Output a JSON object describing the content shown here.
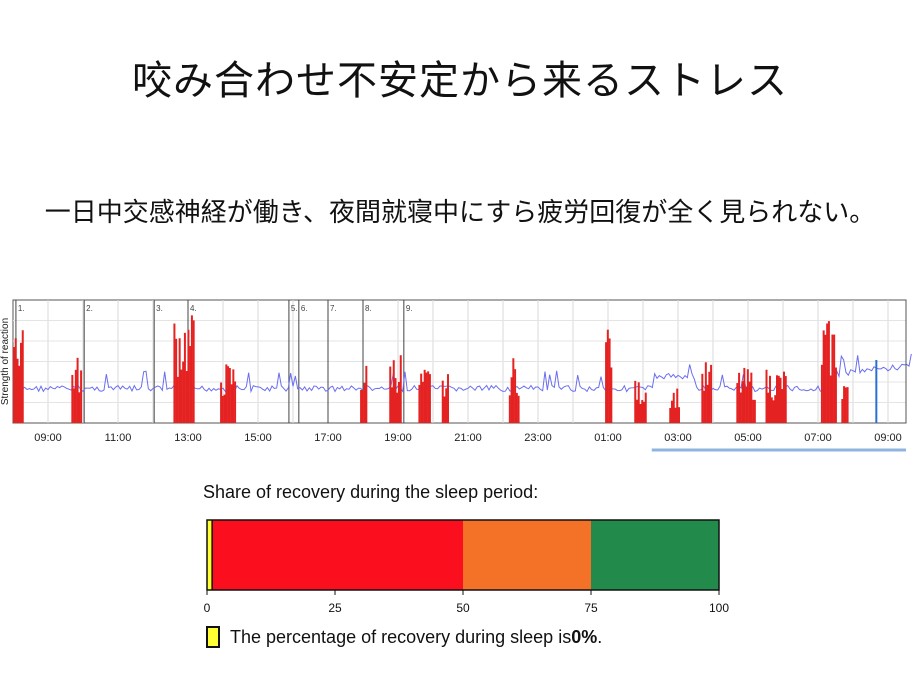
{
  "slide": {
    "title": "咬み合わせ不安定から来るストレス",
    "subtitle": "一日中交感神経が働き、夜間就寝中にすら疲労回復が全く見られない。"
  },
  "chart_data": [
    {
      "type": "line",
      "ylabel": "Strength of reaction",
      "x_tick_labels": [
        "09:00",
        "11:00",
        "13:00",
        "15:00",
        "17:00",
        "19:00",
        "21:00",
        "23:00",
        "01:00",
        "03:00",
        "05:00",
        "07:00",
        "09:00"
      ],
      "event_markers": [
        "1.",
        "2.",
        "3.",
        "4.",
        "5.",
        "6.",
        "7.",
        "8.",
        "9."
      ],
      "series": [
        {
          "kind": "line",
          "color": "#6a6ef0"
        },
        {
          "kind": "bar",
          "color": "#e52222"
        }
      ],
      "sleep_period": {
        "start": "02:15",
        "end": "09:40",
        "color": "#8fb4e0"
      },
      "grid": true
    },
    {
      "type": "bar",
      "title": "Share of recovery during the sleep period:",
      "x_ticks": [
        0,
        25,
        50,
        75,
        100
      ],
      "xlim": [
        0,
        100
      ],
      "segments": [
        {
          "from": 0,
          "to": 1,
          "color": "#ffff33"
        },
        {
          "from": 1,
          "to": 50,
          "color": "#fb0f1e"
        },
        {
          "from": 50,
          "to": 75,
          "color": "#f47227"
        },
        {
          "from": 75,
          "to": 100,
          "color": "#228b4c"
        }
      ],
      "legend_text": "The percentage of recovery during sleep is ",
      "legend_value": "0%",
      "legend_suffix": "."
    }
  ]
}
